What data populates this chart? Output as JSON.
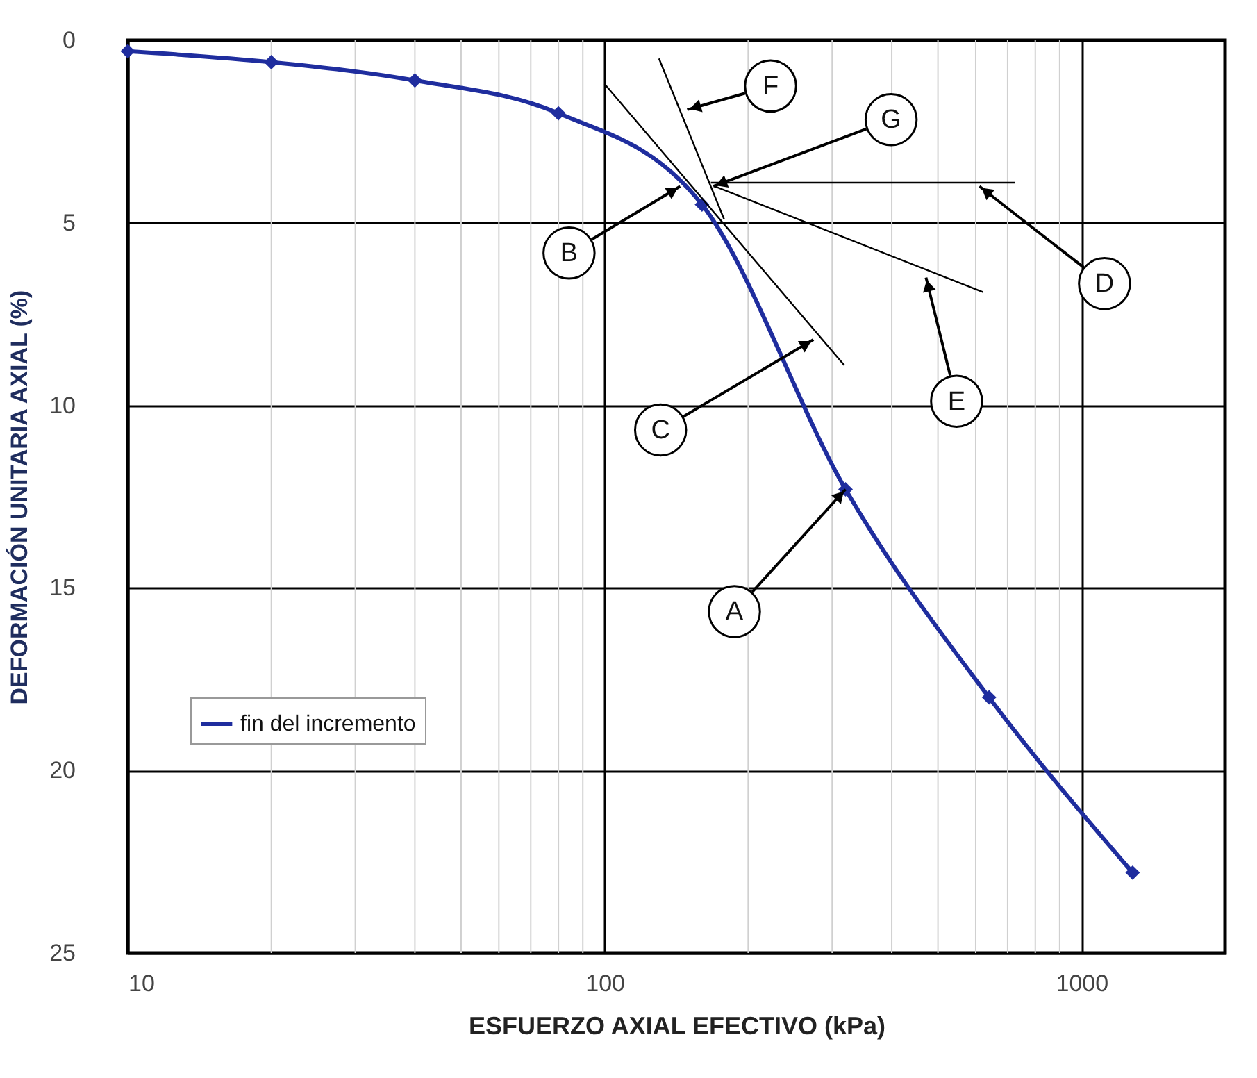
{
  "chart_data": {
    "type": "line",
    "xlabel": "ESFUERZO AXIAL EFECTIVO (kPa)",
    "ylabel": "DEFORMACIÓN UNITARIA AXIAL (%)",
    "log": "x",
    "xlim": [
      10,
      2000
    ],
    "xticks": [
      10,
      100,
      1000
    ],
    "ylim": [
      25,
      0
    ],
    "yticks": [
      0,
      5,
      10,
      15,
      20,
      25
    ],
    "grid": true,
    "legend": "left",
    "marker": "diamond",
    "line_style": "solid",
    "series": [
      {
        "name": "fin del incremento",
        "color": "#1f2d9e",
        "x": [
          10,
          20,
          40,
          80,
          160,
          320,
          640,
          1280
        ],
        "values": [
          0.3,
          0.6,
          1.1,
          2.0,
          4.5,
          12.3,
          18.0,
          22.8
        ]
      },
      {
        "color": "#000000",
        "marker": "none",
        "x": [
          100,
          318
        ],
        "values": [
          1.2,
          8.9
        ]
      },
      {
        "color": "#000000",
        "marker": "none",
        "x": [
          130,
          178
        ],
        "values": [
          0.5,
          4.9
        ]
      },
      {
        "color": "#000000",
        "marker": "none",
        "x": [
          167,
          725
        ],
        "values": [
          3.9,
          3.9
        ]
      },
      {
        "color": "#000000",
        "marker": "none",
        "x": [
          170,
          622
        ],
        "values": [
          4.0,
          6.9
        ]
      }
    ],
    "annotations": [
      {
        "text": "A",
        "x": 320,
        "y": 12.3
      },
      {
        "text": "B",
        "x": 144,
        "y": 4.0
      },
      {
        "text": "C",
        "x": 274,
        "y": 8.2
      },
      {
        "text": "D",
        "x": 611,
        "y": 4.0
      },
      {
        "text": "E",
        "x": 472,
        "y": 6.5
      },
      {
        "text": "F",
        "x": 149,
        "y": 1.9
      },
      {
        "text": "G",
        "x": 169,
        "y": 4.0
      }
    ]
  }
}
